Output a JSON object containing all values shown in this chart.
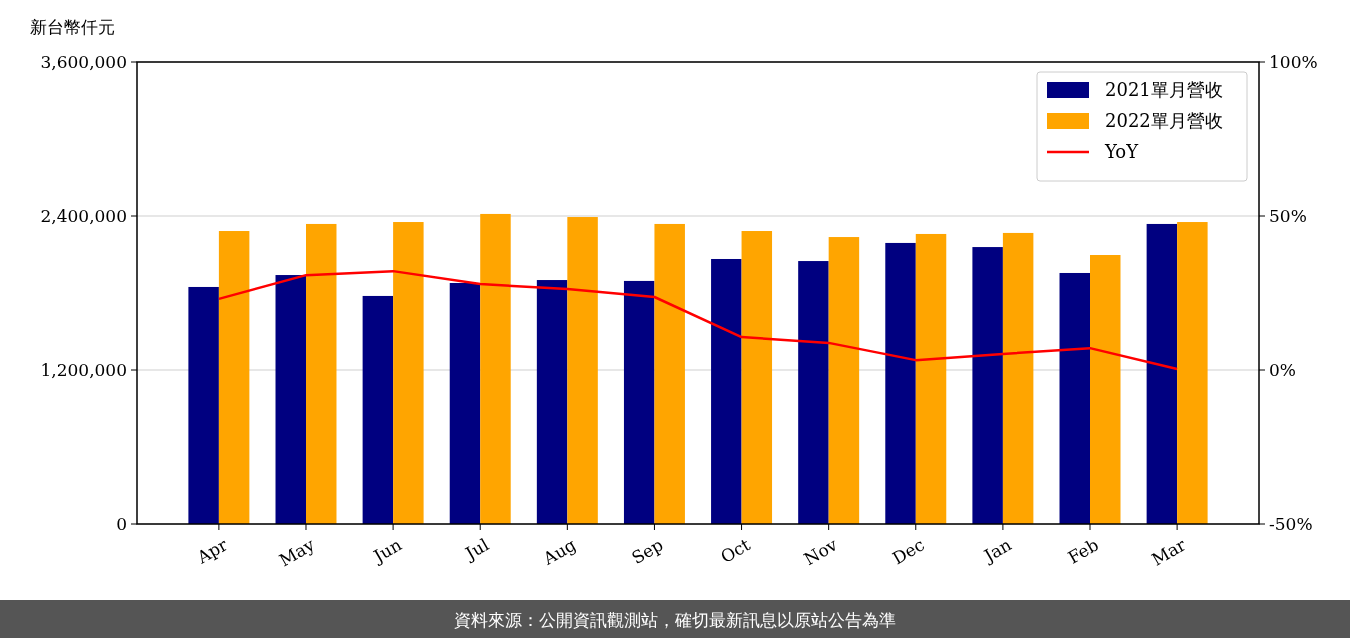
{
  "chart_data": {
    "type": "bar",
    "ylabel": "新台幣仟元",
    "categories": [
      "Apr",
      "May",
      "Jun",
      "Jul",
      "Aug",
      "Sep",
      "Oct",
      "Nov",
      "Dec",
      "Jan",
      "Feb",
      "Mar"
    ],
    "series": [
      {
        "name": "2021單月營收",
        "color": "#000080",
        "values": [
          1847000,
          1940000,
          1777000,
          1878000,
          1901000,
          1894000,
          2065000,
          2049000,
          2190000,
          2158000,
          1956000,
          2338000
        ]
      },
      {
        "name": "2022單月營收",
        "color": "#ffa500",
        "values": [
          2283000,
          2338000,
          2353000,
          2416000,
          2392000,
          2338000,
          2283000,
          2236000,
          2260000,
          2268000,
          2096000,
          2353000
        ]
      },
      {
        "name": "YoY",
        "type": "line",
        "axis": "y2",
        "color": "#ff0000",
        "values": [
          23.1,
          30.8,
          32.1,
          27.9,
          26.3,
          23.7,
          10.7,
          8.8,
          3.2,
          5.2,
          7.1,
          0.3
        ]
      }
    ],
    "ylim": [
      0,
      3600000
    ],
    "yticks": [
      {
        "value": 0,
        "label": "0"
      },
      {
        "value": 1200000,
        "label": "1,200,000"
      },
      {
        "value": 2400000,
        "label": "2,400,000"
      },
      {
        "value": 3600000,
        "label": "3,600,000"
      }
    ],
    "y2lim": [
      -50,
      100
    ],
    "y2ticks": [
      {
        "value": -50,
        "label": "-50%"
      },
      {
        "value": 0,
        "label": "0%"
      },
      {
        "value": 50,
        "label": "50%"
      },
      {
        "value": 100,
        "label": "100%"
      }
    ],
    "grid": "y",
    "legend": "top right",
    "marker": "none",
    "line_style": "solid",
    "annotations": [
      "資料來源：公開資訊觀測站，確切最新訊息以原站公告為準"
    ]
  }
}
